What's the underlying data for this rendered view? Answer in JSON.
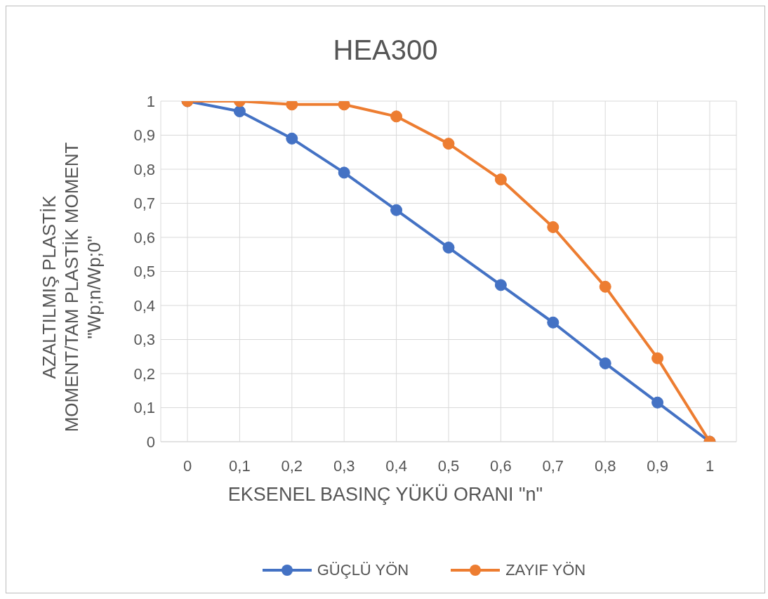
{
  "chart_data": {
    "type": "line",
    "title": "HEA300",
    "xlabel": "EKSENEL BASINÇ YÜKÜ ORANI \"n\"",
    "ylabel": "AZALTILMIŞ PLASTİK\nMOMENT/TAM PLASTİK MOMENT\n\"Wp;n/Wp;0\"",
    "categories": [
      "0",
      "0,1",
      "0,2",
      "0,3",
      "0,4",
      "0,5",
      "0,6",
      "0,7",
      "0,8",
      "0,9",
      "1"
    ],
    "series": [
      {
        "name": "GÜÇLÜ YÖN",
        "color": "#4472c4",
        "values": [
          1,
          0.97,
          0.89,
          0.79,
          0.68,
          0.57,
          0.46,
          0.35,
          0.23,
          0.115,
          0
        ]
      },
      {
        "name": "ZAYIF YÖN",
        "color": "#ed7d31",
        "values": [
          1,
          1,
          0.99,
          0.99,
          0.955,
          0.875,
          0.77,
          0.63,
          0.455,
          0.245,
          0
        ]
      }
    ],
    "ylim": [
      0,
      1
    ],
    "yticks": [
      {
        "value": 0,
        "label": "0"
      },
      {
        "value": 0.1,
        "label": "0,1"
      },
      {
        "value": 0.2,
        "label": "0,2"
      },
      {
        "value": 0.3,
        "label": "0,3"
      },
      {
        "value": 0.4,
        "label": "0,4"
      },
      {
        "value": 0.5,
        "label": "0,5"
      },
      {
        "value": 0.6,
        "label": "0,6"
      },
      {
        "value": 0.7,
        "label": "0,7"
      },
      {
        "value": 0.8,
        "label": "0,8"
      },
      {
        "value": 0.9,
        "label": "0,9"
      },
      {
        "value": 1,
        "label": "1"
      }
    ],
    "grid": true,
    "legend": "bottom",
    "marker": "circle",
    "line_style": "solid"
  }
}
